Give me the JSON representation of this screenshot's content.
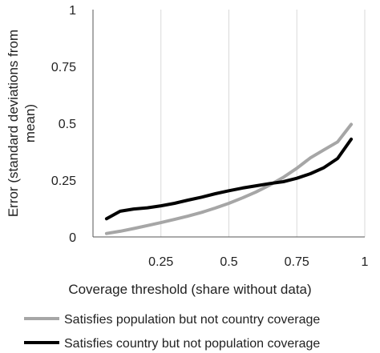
{
  "chart_data": {
    "type": "line",
    "title": "",
    "xlabel": "Coverage threshold (share without data)",
    "ylabel": "Error (standard deviations from mean)",
    "xlim": [
      0,
      1
    ],
    "ylim": [
      0,
      1
    ],
    "x_ticks": [
      "0.25",
      "0.5",
      "0.75",
      "1"
    ],
    "y_ticks": [
      "0",
      "0.25",
      "0.5",
      "0.75",
      "1"
    ],
    "grid": "vertical",
    "legend_position": "bottom",
    "x": [
      0.05,
      0.1,
      0.15,
      0.2,
      0.25,
      0.3,
      0.35,
      0.4,
      0.45,
      0.5,
      0.55,
      0.6,
      0.65,
      0.7,
      0.75,
      0.8,
      0.85,
      0.9,
      0.95
    ],
    "series": [
      {
        "name": "Satisfies population but not country coverage",
        "color": "#a6a6a6",
        "values": [
          0.015,
          0.025,
          0.037,
          0.05,
          0.063,
          0.077,
          0.092,
          0.108,
          0.127,
          0.148,
          0.172,
          0.198,
          0.228,
          0.262,
          0.302,
          0.348,
          0.383,
          0.418,
          0.495
        ]
      },
      {
        "name": "Satisfies country but not population coverage",
        "color": "#000000",
        "values": [
          0.08,
          0.113,
          0.123,
          0.128,
          0.137,
          0.148,
          0.162,
          0.175,
          0.19,
          0.203,
          0.215,
          0.225,
          0.235,
          0.243,
          0.258,
          0.278,
          0.305,
          0.345,
          0.43
        ]
      }
    ]
  }
}
